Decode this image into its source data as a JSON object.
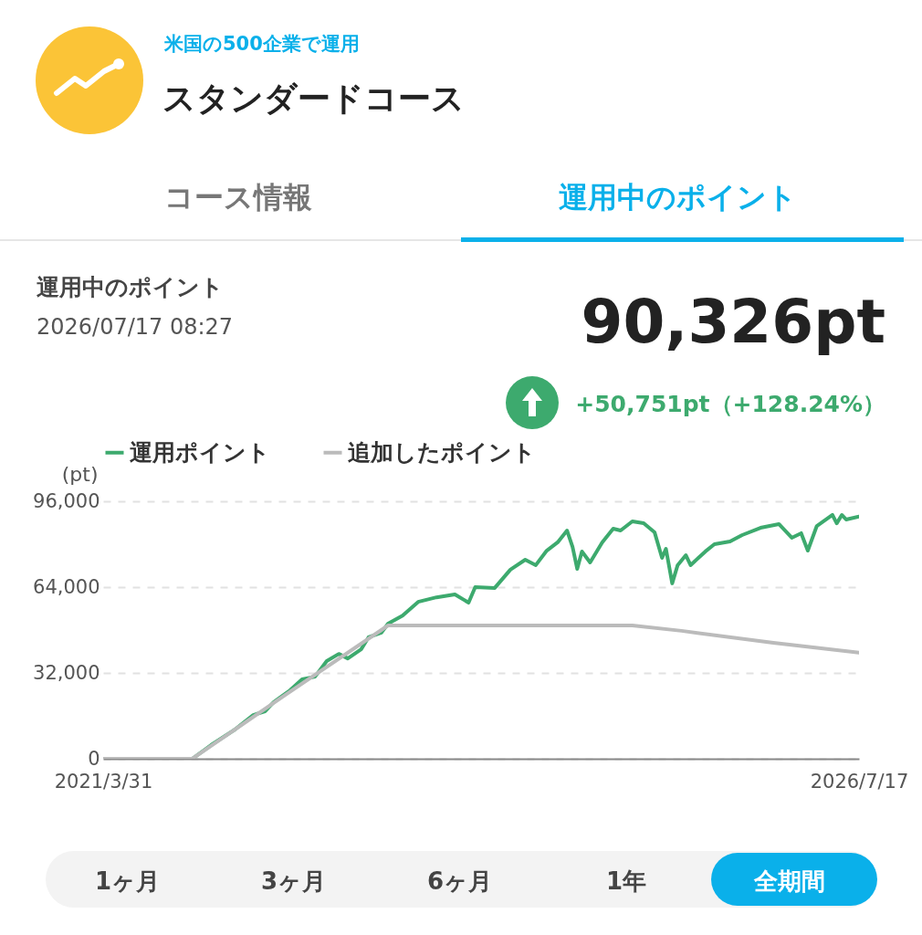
{
  "chart_data": {
    "type": "line",
    "title": "スタンダードコース",
    "subtitle": "米国の500企業で運用",
    "ylabel": "(pt)",
    "annotations": [
      "コース情報",
      "運用中のポイント",
      "運用中のポイント",
      "2026/07/17 08:27",
      "90,326pt",
      "+50,751pt（+128.24%）",
      "1ヶ月",
      "3ヶ月",
      "6ヶ月",
      "1年",
      "全期間"
    ],
    "xlim": [
      "2021-03-31",
      "2026-07-17"
    ],
    "xticks": [
      {
        "value": "2021-03-31",
        "label": "2021/3/31"
      },
      {
        "value": "2026-07-17",
        "label": "2026/7/17"
      }
    ],
    "ylim": [
      0,
      96000
    ],
    "yticks": [
      {
        "value": 0,
        "label": "0"
      },
      {
        "value": 32000,
        "label": "32,000"
      },
      {
        "value": 64000,
        "label": "64,000"
      },
      {
        "value": 96000,
        "label": "96,000"
      }
    ],
    "grid": "y",
    "legend": "top",
    "line_style": "solid",
    "series": [
      {
        "name": "運用ポイント",
        "color": "#3daa6e",
        "x": [
          "2021-03-31",
          "2021-11-14",
          "2022-01-01",
          "2022-03-03",
          "2022-04-19",
          "2022-05-19",
          "2022-06-10",
          "2022-07-22",
          "2022-08-22",
          "2022-09-24",
          "2022-10-24",
          "2022-11-24",
          "2022-12-17",
          "2023-01-20",
          "2023-02-08",
          "2023-03-13",
          "2023-03-30",
          "2023-05-06",
          "2023-06-15",
          "2023-08-01",
          "2023-09-17",
          "2023-10-22",
          "2023-11-08",
          "2023-12-28",
          "2024-02-06",
          "2024-03-15",
          "2024-04-11",
          "2024-05-09",
          "2024-06-06",
          "2024-06-30",
          "2024-07-14",
          "2024-07-26",
          "2024-08-07",
          "2024-08-28",
          "2024-09-28",
          "2024-10-26",
          "2024-11-14",
          "2024-12-14",
          "2025-01-12",
          "2025-02-09",
          "2025-02-28",
          "2025-03-10",
          "2025-03-26",
          "2025-04-09",
          "2025-04-30",
          "2025-05-12",
          "2025-06-19",
          "2025-07-12",
          "2025-08-21",
          "2025-09-21",
          "2025-11-07",
          "2025-12-24",
          "2026-01-26",
          "2026-02-19",
          "2026-03-08",
          "2026-03-31",
          "2026-05-10",
          "2026-05-21",
          "2026-06-03",
          "2026-06-14",
          "2026-07-17"
        ],
        "values": [
          0,
          0,
          5100,
          10900,
          16300,
          17700,
          21100,
          25500,
          29600,
          30600,
          36400,
          39100,
          37400,
          40800,
          45300,
          47000,
          50400,
          53400,
          58500,
          60200,
          61300,
          58200,
          64000,
          63700,
          70500,
          74200,
          72200,
          77600,
          80700,
          85100,
          79000,
          70800,
          77300,
          73200,
          80700,
          85800,
          85100,
          88500,
          87800,
          84400,
          74900,
          78300,
          65400,
          72200,
          75900,
          72200,
          77300,
          80000,
          81000,
          83400,
          86100,
          87500,
          82400,
          84100,
          77600,
          86800,
          90900,
          87800,
          90900,
          89200,
          90326
        ]
      },
      {
        "name": "追加したポイント",
        "color": "#bbbbbb",
        "x": [
          "2021-03-31",
          "2021-11-14",
          "2022-07-22",
          "2023-03-30",
          "2024-12-14",
          "2025-04-19",
          "2025-12-10",
          "2026-07-17"
        ],
        "values": [
          0,
          0,
          25000,
          49700,
          49700,
          47700,
          43200,
          39575
        ]
      }
    ]
  }
}
